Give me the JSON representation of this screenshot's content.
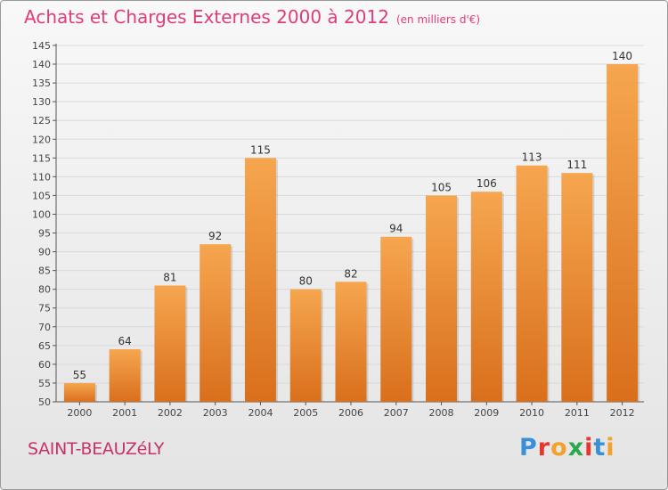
{
  "title": "Achats et Charges Externes 2000 à 2012",
  "unit": "(en milliers d'€)",
  "town": "SAINT-BEAUZéLY",
  "logo": {
    "text": "Proxiti",
    "colors": [
      "#3a8fd8",
      "#e8362d",
      "#f2a12a",
      "#2aa84a",
      "#e8362d",
      "#3a8fd8",
      "#f2a12a"
    ]
  },
  "colors": {
    "bar_top": "#f6a64f",
    "bar_bottom": "#d96f1c",
    "title": "#e03c7a",
    "grid": "#d9d9d9"
  },
  "chart_data": {
    "type": "bar",
    "categories": [
      "2000",
      "2001",
      "2002",
      "2003",
      "2004",
      "2005",
      "2006",
      "2007",
      "2008",
      "2009",
      "2010",
      "2011",
      "2012"
    ],
    "values": [
      55,
      64,
      81,
      92,
      115,
      80,
      82,
      94,
      105,
      106,
      113,
      111,
      140
    ],
    "ylim": [
      50,
      145
    ],
    "yticks": [
      50,
      55,
      60,
      65,
      70,
      75,
      80,
      85,
      90,
      95,
      100,
      105,
      110,
      115,
      120,
      125,
      130,
      135,
      140,
      145
    ],
    "grid": true
  }
}
